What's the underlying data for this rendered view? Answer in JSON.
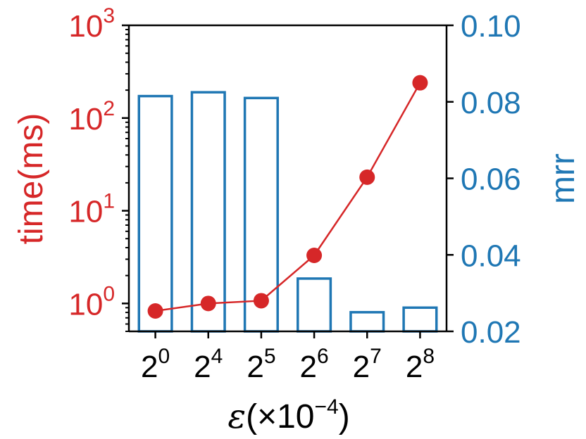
{
  "chart_data": {
    "type": "bar+line",
    "categories": [
      {
        "base": "2",
        "exp": "0"
      },
      {
        "base": "2",
        "exp": "4"
      },
      {
        "base": "2",
        "exp": "5"
      },
      {
        "base": "2",
        "exp": "6"
      },
      {
        "base": "2",
        "exp": "7"
      },
      {
        "base": "2",
        "exp": "8"
      }
    ],
    "xlabel": {
      "symbol": "ε",
      "open": "(×10",
      "exp": "−4",
      "close": ")"
    },
    "left_axis": {
      "label": "time(ms)",
      "scale": "log",
      "ylim": [
        0.5,
        1000
      ],
      "ticks": [
        {
          "base": "10",
          "exp": "0",
          "value": 1
        },
        {
          "base": "10",
          "exp": "1",
          "value": 10
        },
        {
          "base": "10",
          "exp": "2",
          "value": 100
        },
        {
          "base": "10",
          "exp": "3",
          "value": 1000
        }
      ]
    },
    "right_axis": {
      "label": "mrr",
      "scale": "linear",
      "ylim": [
        0.02,
        0.1
      ],
      "ticks": [
        "0.02",
        "0.04",
        "0.06",
        "0.08",
        "0.10"
      ]
    },
    "series": [
      {
        "name": "time",
        "type": "line",
        "axis": "left",
        "values": [
          0.83,
          1.0,
          1.07,
          3.3,
          23,
          240
        ]
      },
      {
        "name": "mrr",
        "type": "bar",
        "axis": "right",
        "values": [
          0.0815,
          0.0825,
          0.081,
          0.0338,
          0.025,
          0.0262
        ]
      }
    ],
    "colors": {
      "time": "#d62728",
      "mrr": "#1f77b4",
      "axis": "#000000"
    }
  }
}
